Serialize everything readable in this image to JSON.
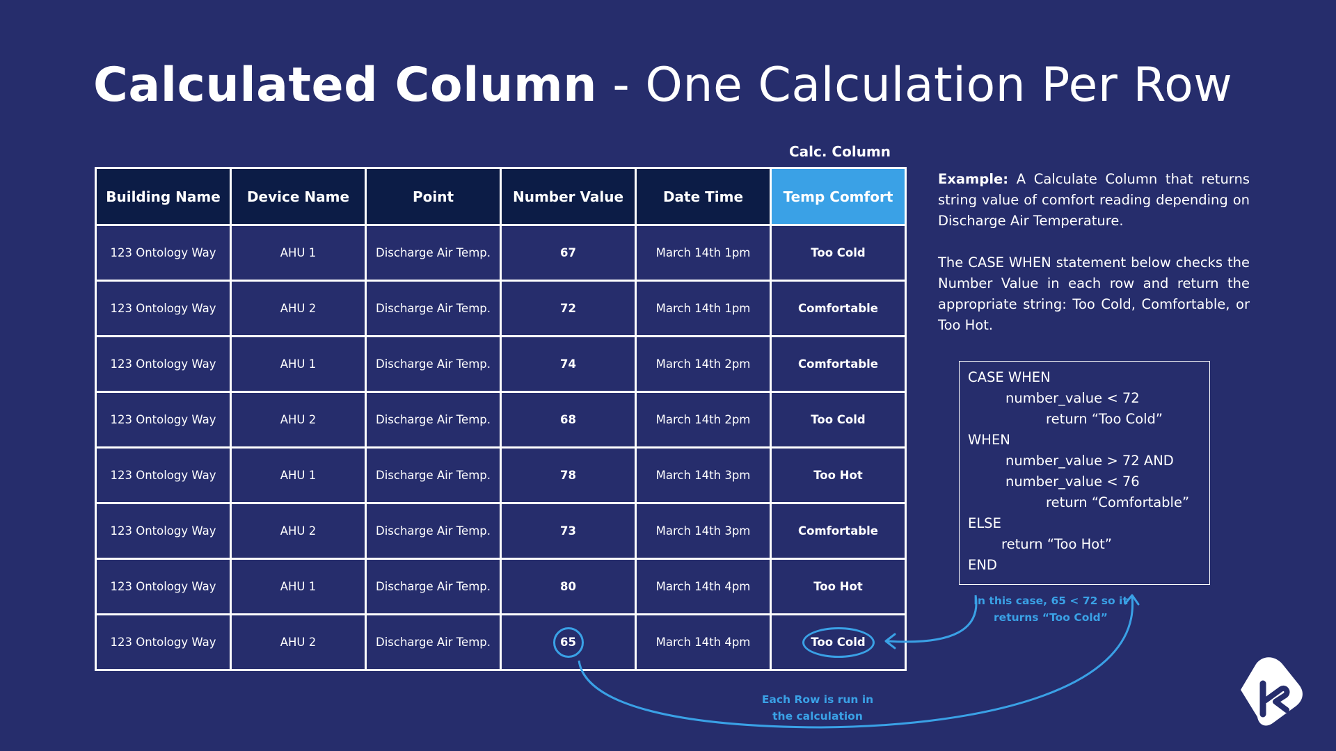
{
  "title": {
    "bold": "Calculated Column",
    "rest": " - One Calculation Per Row"
  },
  "calc_column_label": "Calc. Column",
  "table": {
    "headers": [
      "Building Name",
      "Device Name",
      "Point",
      "Number Value",
      "Date Time",
      "Temp Comfort"
    ],
    "rows": [
      [
        "123 Ontology Way",
        "AHU 1",
        "Discharge Air Temp.",
        "67",
        "March 14th 1pm",
        "Too Cold"
      ],
      [
        "123 Ontology Way",
        "AHU 2",
        "Discharge Air Temp.",
        "72",
        "March 14th 1pm",
        "Comfortable"
      ],
      [
        "123 Ontology Way",
        "AHU 1",
        "Discharge Air Temp.",
        "74",
        "March 14th 2pm",
        "Comfortable"
      ],
      [
        "123 Ontology Way",
        "AHU 2",
        "Discharge Air Temp.",
        "68",
        "March 14th 2pm",
        "Too Cold"
      ],
      [
        "123 Ontology Way",
        "AHU 1",
        "Discharge Air Temp.",
        "78",
        "March 14th 3pm",
        "Too Hot"
      ],
      [
        "123 Ontology Way",
        "AHU 2",
        "Discharge Air Temp.",
        "73",
        "March 14th 3pm",
        "Comfortable"
      ],
      [
        "123 Ontology Way",
        "AHU 1",
        "Discharge Air Temp.",
        "80",
        "March 14th 4pm",
        "Too Hot"
      ],
      [
        "123 Ontology Way",
        "AHU 2",
        "Discharge Air Temp.",
        "65",
        "March 14th 4pm",
        "Too Cold"
      ]
    ]
  },
  "example": {
    "label": "Example:",
    "text": " A Calculate Column that returns string value of comfort reading depending on Discharge Air Temperature.",
    "paragraph2": "The CASE WHEN statement below checks the Number Value in each row and return the appropriate string: Too Cold, Comfortable, or Too Hot."
  },
  "code": {
    "lines": [
      "CASE WHEN",
      "number_value < 72",
      "return “Too Cold”",
      "WHEN",
      "number_value > 72 AND",
      "number_value < 76",
      "return “Comfortable”",
      "ELSE",
      "return “Too Hot”",
      "END"
    ]
  },
  "notes": {
    "case_line1": "In this case, 65 < 72 so it",
    "case_line2": "returns “Too Cold”",
    "row_line1": "Each Row is run in",
    "row_line2": "the calculation"
  },
  "colors": {
    "background": "#262d6c",
    "header": "#0c1c46",
    "accent": "#3aa1e6"
  },
  "icons": {
    "logo": "k-logo-icon"
  }
}
